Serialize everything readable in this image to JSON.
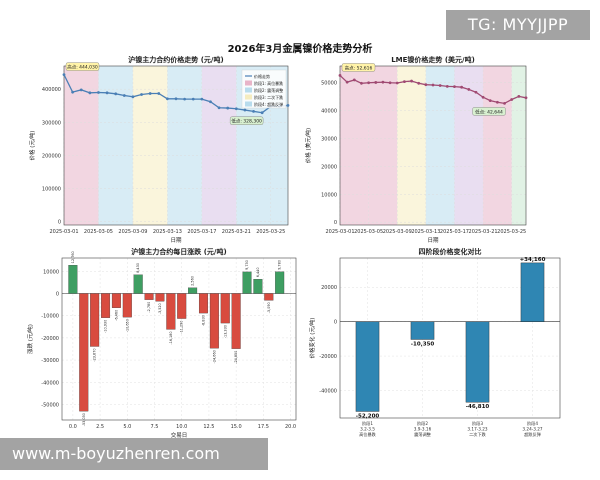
{
  "suptitle": "2026年3月金属镍价格走势分析",
  "watermarks": {
    "top": "TG: MYYJJPP",
    "bottom": "www.m-boyuzhenren.com"
  },
  "colors": {
    "shfe_line": "#4a7fb5",
    "lme_line": "#a04a72",
    "bar_up": "#3e9e62",
    "bar_down": "#d84b3f",
    "phase_bar": "#2f86b3",
    "phase_bands": [
      "#e8b4c8",
      "#b8dced",
      "#f5ecc0",
      "#d7c3e6",
      "#c8e8cf"
    ]
  },
  "chart_data": [
    {
      "type": "line",
      "title": "沪镍主力合约价格走势 (元/吨)",
      "xlabel": "日期",
      "ylabel": "价格 (元/吨)",
      "x": [
        "2025-03-01",
        "2025-03-02",
        "2025-03-03",
        "2025-03-04",
        "2025-03-05",
        "2025-03-06",
        "2025-03-07",
        "2025-03-08",
        "2025-03-09",
        "2025-03-10",
        "2025-03-11",
        "2025-03-12",
        "2025-03-13",
        "2025-03-14",
        "2025-03-15",
        "2025-03-16",
        "2025-03-17",
        "2025-03-18",
        "2025-03-19",
        "2025-03-20",
        "2025-03-21",
        "2025-03-22",
        "2025-03-23",
        "2025-03-24",
        "2025-03-25",
        "2025-03-26",
        "2025-03-27"
      ],
      "values": [
        444030,
        391000,
        398000,
        389000,
        390000,
        389000,
        386000,
        381000,
        377000,
        384000,
        387000,
        387000,
        371000,
        371000,
        370000,
        370000,
        370000,
        362000,
        344000,
        343000,
        341000,
        337000,
        333000,
        329000,
        348000,
        348000,
        351000
      ],
      "xticks": [
        "2025-03-01",
        "2025-03-05",
        "2025-03-09",
        "2025-03-13",
        "2025-03-17",
        "2025-03-21",
        "2025-03-25"
      ],
      "yticks": [
        0,
        100000,
        200000,
        300000,
        400000
      ],
      "ylim": [
        -10000,
        470000
      ],
      "bands": [
        [
          "2025-03-01",
          "2025-03-05"
        ],
        [
          "2025-03-05",
          "2025-03-09"
        ],
        [
          "2025-03-09",
          "2025-03-13"
        ],
        [
          "2025-03-13",
          "2025-03-17"
        ],
        [
          "2025-03-17",
          "2025-03-21"
        ],
        [
          "2025-03-21",
          "2025-03-27"
        ]
      ],
      "legend": [
        "价格走势",
        "阶段1: 高位暴跌",
        "阶段2: 震荡调整",
        "阶段3: 二次下跌",
        "阶段4: 超跌反弹"
      ],
      "annotations": [
        {
          "text": "高点: 444,030",
          "x": "2025-03-01",
          "y": 444030
        },
        {
          "text": "低点: 328,300",
          "x": "2025-03-24",
          "y": 329000
        }
      ]
    },
    {
      "type": "line",
      "title": "LME镍价格走势 (美元/吨)",
      "xlabel": "日期",
      "ylabel": "价格 (美元/吨)",
      "x": [
        "2025-03-01",
        "2025-03-02",
        "2025-03-03",
        "2025-03-04",
        "2025-03-05",
        "2025-03-06",
        "2025-03-07",
        "2025-03-08",
        "2025-03-09",
        "2025-03-10",
        "2025-03-11",
        "2025-03-12",
        "2025-03-13",
        "2025-03-14",
        "2025-03-15",
        "2025-03-16",
        "2025-03-17",
        "2025-03-18",
        "2025-03-19",
        "2025-03-20",
        "2025-03-21",
        "2025-03-22",
        "2025-03-23",
        "2025-03-24",
        "2025-03-25",
        "2025-03-26",
        "2025-03-27"
      ],
      "values": [
        52616,
        50200,
        51000,
        49800,
        50000,
        50100,
        50200,
        50000,
        49900,
        50400,
        50600,
        49800,
        49300,
        49200,
        49000,
        48700,
        48600,
        48400,
        47600,
        46600,
        44800,
        43600,
        43000,
        42600,
        44000,
        45100,
        44600
      ],
      "xticks": [
        "2025-03-01",
        "2025-03-05",
        "2025-03-09",
        "2025-03-13",
        "2025-03-17",
        "2025-03-21",
        "2025-03-25"
      ],
      "yticks": [
        0,
        10000,
        20000,
        30000,
        40000,
        50000
      ],
      "ylim": [
        -1000,
        56000
      ],
      "bands": [
        [
          "2025-03-01",
          "2025-03-05"
        ],
        [
          "2025-03-05",
          "2025-03-09"
        ],
        [
          "2025-03-09",
          "2025-03-13"
        ],
        [
          "2025-03-13",
          "2025-03-17"
        ],
        [
          "2025-03-17",
          "2025-03-21"
        ],
        [
          "2025-03-21",
          "2025-03-25"
        ],
        [
          "2025-03-25",
          "2025-03-27"
        ]
      ],
      "annotations": [
        {
          "text": "高点: 52,616",
          "x": "2025-03-01",
          "y": 52616
        },
        {
          "text": "低点: 42,644",
          "x": "2025-03-24",
          "y": 42600
        }
      ]
    },
    {
      "type": "bar",
      "title": "沪镍主力合约每日涨跌 (元/吨)",
      "xlabel": "交易日",
      "ylabel": "涨跌 (元/吨)",
      "x": [
        0,
        1,
        2,
        3,
        4,
        5,
        6,
        7,
        8,
        9,
        10,
        11,
        12,
        13,
        14,
        15,
        16,
        17,
        18,
        19
      ],
      "values": [
        12760,
        -53030,
        -23870,
        -10930,
        -6460,
        -10650,
        8430,
        -2780,
        -3520,
        -16180,
        -11290,
        2560,
        -8830,
        -24660,
        -13330,
        -24850,
        9730,
        6440,
        -3090,
        9780
      ],
      "value_labels": [
        "12,760",
        "-53,030",
        "-23,870",
        "-10,930",
        "-6,460",
        "-10,650",
        "8,430",
        "-2,780",
        "-3,520",
        "-16,180",
        "-11,290",
        "2,560",
        "-8,830",
        "-24,660",
        "-13,330",
        "-24,850",
        "9,730",
        "6,440",
        "-3,090",
        "9,780"
      ],
      "xticks": [
        "0.0",
        "2.5",
        "5.0",
        "7.5",
        "10.0",
        "12.5",
        "15.0",
        "17.5",
        "20.0"
      ],
      "xtick_values": [
        0,
        2.5,
        5,
        7.5,
        10,
        12.5,
        15,
        17.5,
        20
      ],
      "xlim": [
        -1,
        20.5
      ],
      "yticks": [
        "10000",
        "0",
        "-10000",
        "-20000",
        "-30000",
        "-40000",
        "-50000"
      ],
      "ytick_values": [
        10000,
        0,
        -10000,
        -20000,
        -30000,
        -40000,
        -50000
      ],
      "ylim": [
        -57000,
        16000
      ]
    },
    {
      "type": "bar",
      "title": "四阶段价格变化对比",
      "ylabel": "价格变化 (元/吨)",
      "categories": [
        "阶段1\n3.2-3.5\n高位暴跌",
        "阶段2\n3.9-3.16\n震荡调整",
        "阶段3\n3.17-3.23\n二次下跌",
        "阶段4\n3.24-3.27\n超跌反弹"
      ],
      "values": [
        -52200,
        -10350,
        -46810,
        34160
      ],
      "value_labels": [
        "-52,200",
        "-10,350",
        "-46,810",
        "+34,160"
      ],
      "yticks": [
        "20000",
        "0",
        "-20000",
        "-40000"
      ],
      "ytick_values": [
        20000,
        0,
        -20000,
        -40000
      ],
      "ylim": [
        -56000,
        37000
      ]
    }
  ]
}
